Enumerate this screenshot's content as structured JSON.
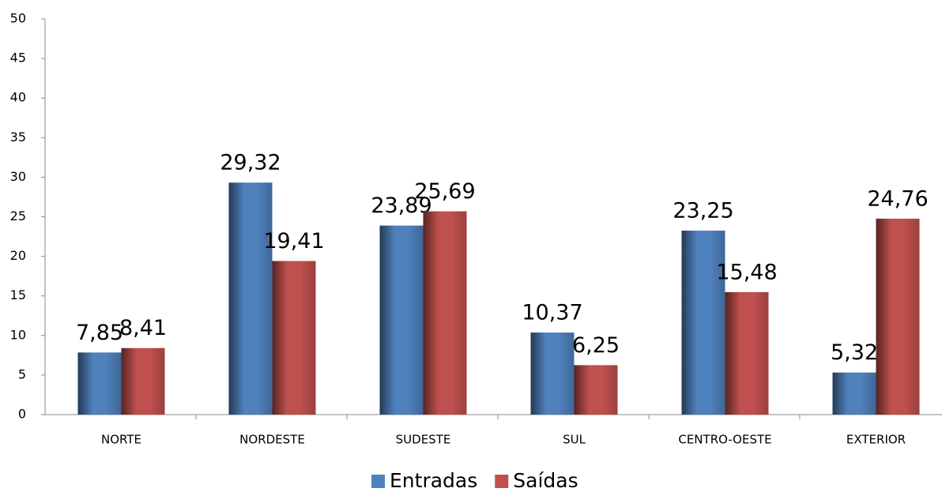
{
  "chart_data": {
    "type": "bar",
    "categories": [
      "NORTE",
      "NORDESTE",
      "SUDESTE",
      "SUL",
      "CENTRO-OESTE",
      "EXTERIOR"
    ],
    "series": [
      {
        "name": "Entradas",
        "color": "#4f81bd",
        "values": [
          7.85,
          29.32,
          23.89,
          10.37,
          23.25,
          5.32
        ],
        "value_labels": [
          "7,85",
          "29,32",
          "23,89",
          "10,37",
          "23,25",
          "5,32"
        ]
      },
      {
        "name": "Saídas",
        "color": "#c0504d",
        "values": [
          8.41,
          19.41,
          25.69,
          6.25,
          15.48,
          24.76
        ],
        "value_labels": [
          "8,41",
          "19,41",
          "25,69",
          "6,25",
          "15,48",
          "24,76"
        ]
      }
    ],
    "ylim": [
      0,
      50
    ],
    "yticks": [
      0,
      5,
      10,
      15,
      20,
      25,
      30,
      35,
      40,
      45,
      50
    ],
    "legend": "bottom"
  }
}
